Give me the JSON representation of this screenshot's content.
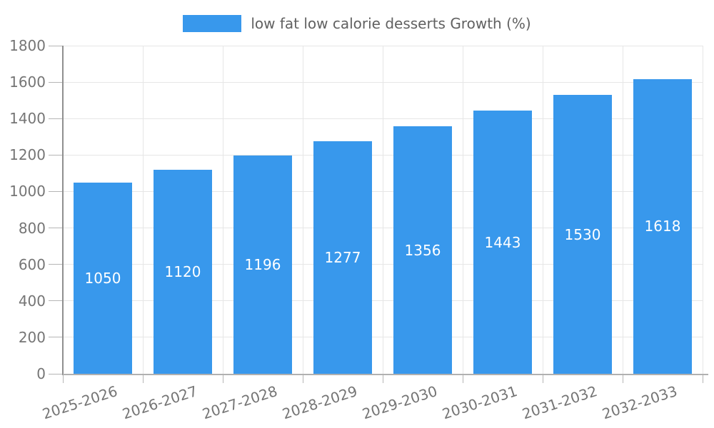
{
  "legend": {
    "items": [
      {
        "label": "low fat low calorie desserts Growth (%)",
        "color": "#3898ec"
      }
    ]
  },
  "chart_data": {
    "type": "bar",
    "title": "low fat low calorie desserts Growth (%)",
    "series_name": "low fat low calorie desserts Growth (%)",
    "categories": [
      "2025-2026",
      "2026-2027",
      "2027-2028",
      "2028-2029",
      "2029-2030",
      "2030-2031",
      "2031-2032",
      "2032-2033"
    ],
    "values": [
      1050,
      1120,
      1196,
      1277,
      1356,
      1443,
      1530,
      1618
    ],
    "value_labels": [
      "1050",
      "1120",
      "1196",
      "1277",
      "1356",
      "1443",
      "1530",
      "1618"
    ],
    "xlabel": "",
    "ylabel": "",
    "ylim": [
      0,
      1800
    ],
    "yticks": [
      0,
      200,
      400,
      600,
      800,
      1000,
      1200,
      1400,
      1600,
      1800
    ],
    "grid": true,
    "legend_position": "top-center",
    "value_label_position": "inside-center",
    "xlabel_rotation_deg": -18
  },
  "colors": {
    "bar": "#3898ec",
    "gridline": "#e6e6e6",
    "y_axis_line": "#8f8f8f",
    "x_axis_line": "#b0b0b0",
    "tick": "#b5b5b5",
    "tick_label": "#757575",
    "legend_text": "#616161",
    "value_label": "#ffffff",
    "background": "#ffffff"
  }
}
